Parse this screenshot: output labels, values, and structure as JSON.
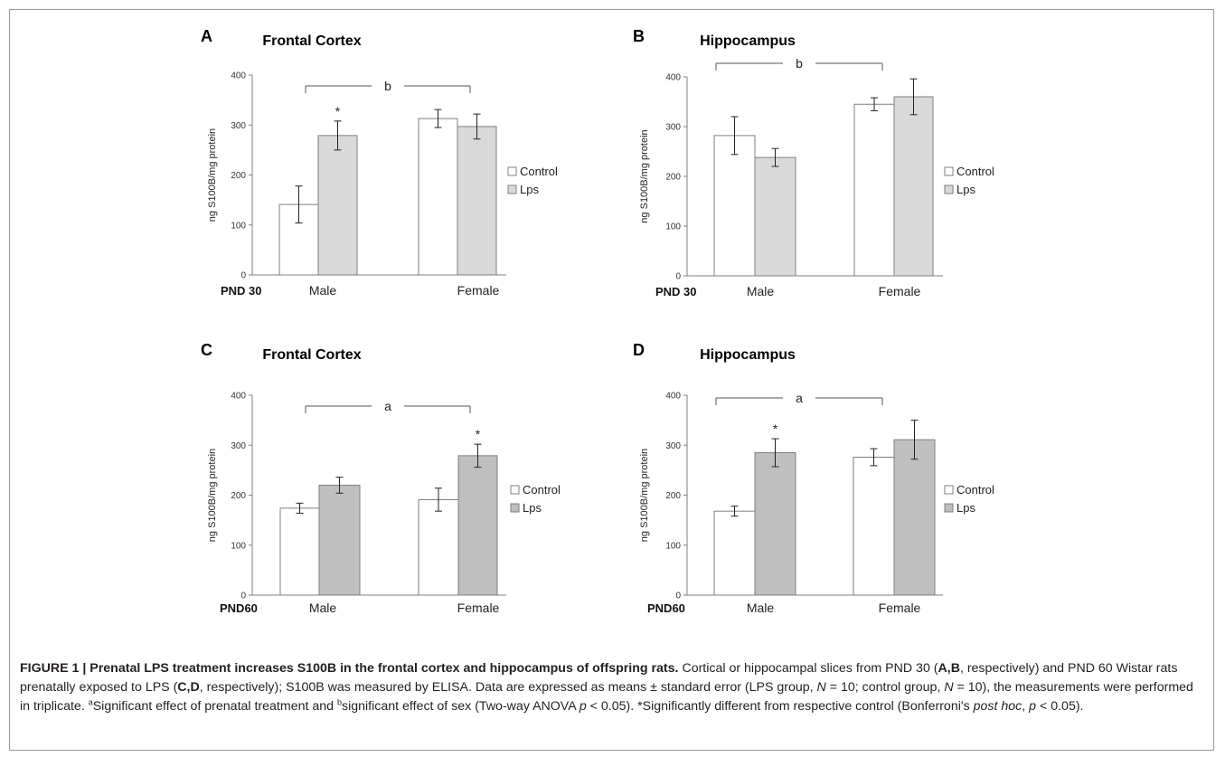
{
  "colors": {
    "control_fill": "#ffffff",
    "lps_fill_pnd30": "#d9d9d9",
    "lps_fill_pnd60": "#bfbfbf",
    "bar_stroke": "#7f7f7f",
    "caption_bold": "#1f3f7f"
  },
  "chart_data": [
    {
      "panel": "A",
      "type": "bar",
      "title": "Frontal Cortex",
      "ylabel": "ng S100B/mg protein",
      "xlabel": "PND 30",
      "ylim": [
        0,
        400
      ],
      "yticks": [
        0,
        100,
        200,
        300,
        400
      ],
      "categories": [
        "Male",
        "Female"
      ],
      "series": [
        {
          "name": "Control",
          "values": [
            141,
            313
          ],
          "errors": [
            37,
            18
          ]
        },
        {
          "name": "Lps",
          "values": [
            279,
            297
          ],
          "errors": [
            29,
            25
          ]
        }
      ],
      "significance": [
        {
          "label": "b"
        },
        {
          "label": "*",
          "category": "Male",
          "series": "Lps"
        }
      ],
      "legend": "right"
    },
    {
      "panel": "B",
      "type": "bar",
      "title": "Hippocampus",
      "ylabel": "ng S100B/mg protein",
      "xlabel": "PND 30",
      "ylim": [
        0,
        400
      ],
      "yticks": [
        0,
        100,
        200,
        300,
        400
      ],
      "categories": [
        "Male",
        "Female"
      ],
      "series": [
        {
          "name": "Control",
          "values": [
            282,
            345
          ],
          "errors": [
            38,
            13
          ]
        },
        {
          "name": "Lps",
          "values": [
            238,
            360
          ],
          "errors": [
            18,
            36
          ]
        }
      ],
      "significance": [
        {
          "label": "b"
        }
      ],
      "legend": "right"
    },
    {
      "panel": "C",
      "type": "bar",
      "title": "Frontal Cortex",
      "ylabel": "ng S100B/mg protein",
      "xlabel": "PND60",
      "ylim": [
        0,
        400
      ],
      "yticks": [
        0,
        100,
        200,
        300,
        400
      ],
      "categories": [
        "Male",
        "Female"
      ],
      "series": [
        {
          "name": "Control",
          "values": [
            174,
            191
          ],
          "errors": [
            10,
            23
          ]
        },
        {
          "name": "Lps",
          "values": [
            220,
            279
          ],
          "errors": [
            16,
            23
          ]
        }
      ],
      "significance": [
        {
          "label": "a"
        },
        {
          "label": "*",
          "category": "Female",
          "series": "Lps"
        }
      ],
      "legend": "right"
    },
    {
      "panel": "D",
      "type": "bar",
      "title": "Hippocampus",
      "ylabel": "ng S100B/mg protein",
      "xlabel": "PND60",
      "ylim": [
        0,
        400
      ],
      "yticks": [
        0,
        100,
        200,
        300,
        400
      ],
      "categories": [
        "Male",
        "Female"
      ],
      "series": [
        {
          "name": "Control",
          "values": [
            168,
            276
          ],
          "errors": [
            10,
            17
          ]
        },
        {
          "name": "Lps",
          "values": [
            285,
            311
          ],
          "errors": [
            28,
            39
          ]
        }
      ],
      "significance": [
        {
          "label": "a"
        },
        {
          "label": "*",
          "category": "Male",
          "series": "Lps"
        }
      ],
      "legend": "right"
    }
  ],
  "caption": {
    "bold": "FIGURE 1 | Prenatal LPS treatment increases S100B in the frontal cortex and hippocampus of offspring rats.",
    "t1": " Cortical or hippocampal slices from PND 30 (",
    "b1": "A,B",
    "t2": ", respectively) and PND 60 Wistar rats prenatally exposed to LPS (",
    "b2": "C,D",
    "t3": ", respectively); S100B was measured by ELISA. Data are expressed as means ± standard error (LPS group, ",
    "n1": "N",
    "t4": " = 10; control group, ",
    "n2": "N",
    "t5": " = 10), the measurements were performed in triplicate. ",
    "sup_a": "a",
    "t6": "Significant effect of prenatal treatment and ",
    "sup_b": "b",
    "t7": "significant effect of sex (Two-way ANOVA ",
    "p1": "p",
    "t8": " < 0.05). *Significantly different from respective control (Bonferroni's ",
    "ph": "post hoc",
    "t9": ", ",
    "p2": "p",
    "t10": " < 0.05)."
  }
}
